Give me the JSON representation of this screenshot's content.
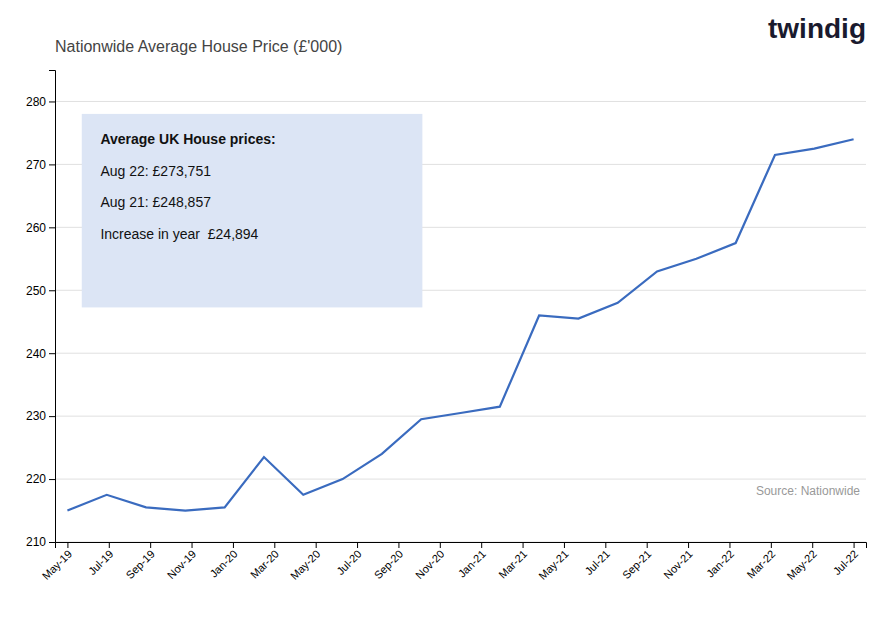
{
  "chart_data": {
    "type": "line",
    "title": "Nationwide Average House Price (£'000)",
    "annotations": [
      "Average UK House prices:",
      "Aug 22: £273,751",
      "Aug 21: £248,857",
      "Increase in year  £24,894"
    ],
    "source": "Source: Nationwide",
    "logo": "twindig",
    "color": "#3a6bbf",
    "x": [
      0,
      0.95,
      1.9,
      2.85,
      3.8,
      4.75,
      5.7,
      6.65,
      7.6,
      8.55,
      9.5,
      10.45,
      11.4,
      12.35,
      13.3,
      14.25,
      15.2,
      16.15,
      17.1,
      18.05,
      19.0
    ],
    "values": [
      215.0,
      217.5,
      215.5,
      215.0,
      215.5,
      223.5,
      217.5,
      220.0,
      224.0,
      229.5,
      230.5,
      231.5,
      246.0,
      245.5,
      248.0,
      253.0,
      255.0,
      257.5,
      271.5,
      272.5,
      274.0
    ],
    "xlim": [
      -0.3,
      19.3
    ],
    "xticks": [
      {
        "value": 0,
        "label": "May-19"
      },
      {
        "value": 1,
        "label": "Jul-19"
      },
      {
        "value": 2,
        "label": "Sep-19"
      },
      {
        "value": 3,
        "label": "Nov-19"
      },
      {
        "value": 4,
        "label": "Jan-20"
      },
      {
        "value": 5,
        "label": "Mar-20"
      },
      {
        "value": 6,
        "label": "May-20"
      },
      {
        "value": 7,
        "label": "Jul-20"
      },
      {
        "value": 8,
        "label": "Sep-20"
      },
      {
        "value": 9,
        "label": "Nov-20"
      },
      {
        "value": 10,
        "label": "Jan-21"
      },
      {
        "value": 11,
        "label": "Mar-21"
      },
      {
        "value": 12,
        "label": "May-21"
      },
      {
        "value": 13,
        "label": "Jul-21"
      },
      {
        "value": 14,
        "label": "Sep-21"
      },
      {
        "value": 15,
        "label": "Nov-21"
      },
      {
        "value": 16,
        "label": "Jan-22"
      },
      {
        "value": 17,
        "label": "Mar-22"
      },
      {
        "value": 18,
        "label": "May-22"
      },
      {
        "value": 19,
        "label": "Jul-22"
      }
    ],
    "ylim": [
      210,
      285
    ],
    "yticks": [
      210,
      220,
      230,
      240,
      250,
      260,
      270,
      280
    ],
    "grid": true
  }
}
